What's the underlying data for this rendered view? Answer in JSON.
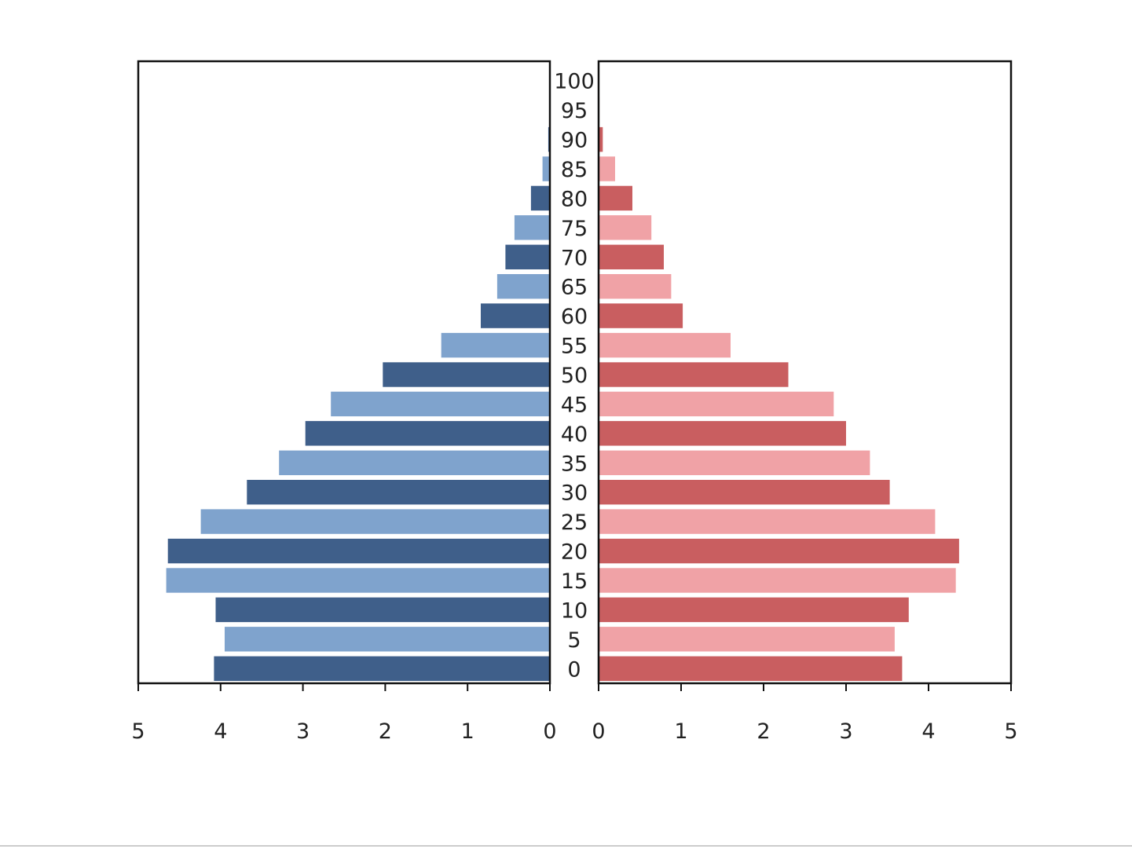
{
  "chart_data": {
    "type": "bar",
    "orientation": "horizontal",
    "layout": "population-pyramid",
    "categories": [
      "0",
      "5",
      "10",
      "15",
      "20",
      "25",
      "30",
      "35",
      "40",
      "45",
      "50",
      "55",
      "60",
      "65",
      "70",
      "75",
      "80",
      "85",
      "90",
      "95",
      "100"
    ],
    "series": [
      {
        "side": "left",
        "values": [
          4.08,
          3.95,
          4.06,
          4.66,
          4.64,
          4.24,
          3.68,
          3.29,
          2.97,
          2.66,
          2.03,
          1.32,
          0.84,
          0.64,
          0.54,
          0.43,
          0.23,
          0.09,
          0.02,
          0.005,
          0.0
        ],
        "colors": [
          "#3f5f8a",
          "#7fa3cd"
        ]
      },
      {
        "side": "right",
        "values": [
          3.68,
          3.59,
          3.76,
          4.33,
          4.37,
          4.08,
          3.53,
          3.29,
          3.0,
          2.85,
          2.3,
          1.6,
          1.02,
          0.88,
          0.79,
          0.64,
          0.41,
          0.2,
          0.05,
          0.01,
          0.0
        ],
        "colors": [
          "#c95e60",
          "#f0a2a6"
        ]
      }
    ],
    "xlim": [
      0,
      5
    ],
    "xticks": [
      "0",
      "1",
      "2",
      "3",
      "4",
      "5"
    ],
    "title": "",
    "xlabel": "",
    "ylabel": "",
    "grid": false,
    "legend": "none"
  }
}
